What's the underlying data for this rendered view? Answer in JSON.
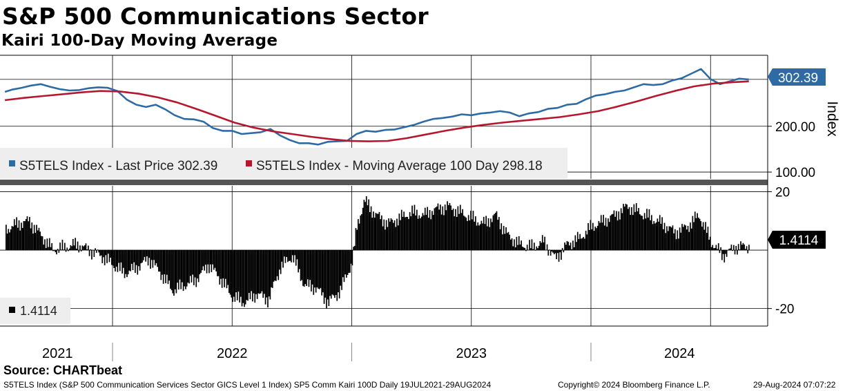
{
  "title": "S&P 500 Communications Sector",
  "subtitle": "Kairi 100-Day Moving Average",
  "source": "Source: CHARTbeat",
  "footer": {
    "description": "S5TELS Index (S&P 500 Communication Services Sector GICS Level 1 Index) SP5 Comm Kairi 100D  Daily 19JUL2021-29AUG2024",
    "copyright": "Copyright© 2024 Bloomberg Finance L.P.",
    "timestamp": "29-Aug-2024 07:07:22"
  },
  "colors": {
    "price": "#2e6ba4",
    "moving_average": "#b4172e",
    "kairi": "#000000",
    "label_bg": "#2e6ba4"
  },
  "chart_data": [
    {
      "type": "line",
      "title": "S5TELS Index",
      "ylabel": "Index",
      "ylim": [
        85,
        355
      ],
      "yticks": [
        100,
        200
      ],
      "ytick_labels": [
        "100.00",
        "200.00"
      ],
      "last_value_label": "302.39",
      "x_ticks": [
        "2021",
        "2022",
        "2023",
        "2024"
      ],
      "x_unit": "years (decimal)",
      "legend": [
        {
          "name": "S5TELS Index - Last Price 302.39",
          "color": "#2e6ba4"
        },
        {
          "name": "S5TELS Index - Moving Average 100 Day 298.18",
          "color": "#b4172e"
        }
      ],
      "series": [
        {
          "name": "Last Price",
          "x": [
            2021.55,
            2021.58,
            2021.62,
            2021.66,
            2021.7,
            2021.74,
            2021.78,
            2021.82,
            2021.86,
            2021.9,
            2021.94,
            2021.98,
            2022.02,
            2022.06,
            2022.1,
            2022.14,
            2022.18,
            2022.22,
            2022.26,
            2022.3,
            2022.34,
            2022.38,
            2022.42,
            2022.46,
            2022.5,
            2022.54,
            2022.58,
            2022.62,
            2022.66,
            2022.7,
            2022.74,
            2022.78,
            2022.82,
            2022.86,
            2022.9,
            2022.94,
            2022.98,
            2023.02,
            2023.06,
            2023.1,
            2023.14,
            2023.18,
            2023.22,
            2023.26,
            2023.3,
            2023.34,
            2023.38,
            2023.42,
            2023.46,
            2023.5,
            2023.54,
            2023.58,
            2023.62,
            2023.66,
            2023.7,
            2023.74,
            2023.78,
            2023.82,
            2023.86,
            2023.9,
            2023.94,
            2023.98,
            2024.02,
            2024.06,
            2024.1,
            2024.14,
            2024.18,
            2024.22,
            2024.26,
            2024.3,
            2024.34,
            2024.38,
            2024.42,
            2024.46,
            2024.5,
            2024.54,
            2024.58,
            2024.62,
            2024.66
          ],
          "values": [
            275,
            280,
            284,
            289,
            292,
            286,
            281,
            278,
            279,
            283,
            285,
            284,
            277,
            258,
            247,
            242,
            247,
            237,
            224,
            216,
            215,
            210,
            196,
            190,
            190,
            183,
            185,
            187,
            194,
            180,
            170,
            163,
            163,
            160,
            166,
            167,
            168,
            183,
            190,
            188,
            192,
            193,
            198,
            203,
            210,
            216,
            218,
            221,
            226,
            224,
            228,
            230,
            233,
            230,
            222,
            228,
            231,
            238,
            240,
            247,
            249,
            259,
            267,
            270,
            275,
            278,
            285,
            292,
            290,
            292,
            300,
            305,
            315,
            325,
            303,
            292,
            298,
            304,
            302
          ]
        },
        {
          "name": "Moving Average 100 Day",
          "x": [
            2021.55,
            2021.63,
            2021.71,
            2021.79,
            2021.87,
            2021.95,
            2022.03,
            2022.11,
            2022.19,
            2022.27,
            2022.35,
            2022.43,
            2022.51,
            2022.59,
            2022.67,
            2022.75,
            2022.83,
            2022.91,
            2022.99,
            2023.07,
            2023.15,
            2023.23,
            2023.31,
            2023.39,
            2023.47,
            2023.55,
            2023.63,
            2023.71,
            2023.79,
            2023.87,
            2023.95,
            2024.03,
            2024.11,
            2024.19,
            2024.27,
            2024.35,
            2024.43,
            2024.51,
            2024.59,
            2024.66
          ],
          "values": [
            257,
            262,
            266,
            270,
            274,
            277,
            276,
            271,
            263,
            252,
            238,
            223,
            208,
            197,
            189,
            183,
            177,
            172,
            168,
            167,
            168,
            174,
            182,
            190,
            197,
            203,
            208,
            212,
            216,
            220,
            226,
            233,
            243,
            254,
            266,
            277,
            287,
            293,
            296,
            298
          ]
        }
      ]
    },
    {
      "type": "bar",
      "title": "Kairi 100-Day",
      "ylim": [
        -26,
        22
      ],
      "yticks": [
        20,
        -20
      ],
      "ytick_labels": [
        "20",
        "-20"
      ],
      "last_value_label": "1.4114",
      "legend": [
        {
          "name": "1.4114",
          "color": "#000000"
        }
      ],
      "x": [
        2021.55,
        2021.6,
        2021.65,
        2021.7,
        2021.75,
        2021.8,
        2021.85,
        2021.9,
        2021.95,
        2022.0,
        2022.05,
        2022.1,
        2022.15,
        2022.2,
        2022.25,
        2022.3,
        2022.35,
        2022.4,
        2022.45,
        2022.5,
        2022.55,
        2022.6,
        2022.65,
        2022.7,
        2022.75,
        2022.8,
        2022.85,
        2022.9,
        2022.95,
        2023.0,
        2023.02,
        2023.05,
        2023.1,
        2023.15,
        2023.2,
        2023.25,
        2023.3,
        2023.35,
        2023.4,
        2023.45,
        2023.5,
        2023.55,
        2023.6,
        2023.65,
        2023.7,
        2023.75,
        2023.8,
        2023.85,
        2023.9,
        2023.95,
        2024.0,
        2024.05,
        2024.1,
        2024.15,
        2024.2,
        2024.25,
        2024.3,
        2024.35,
        2024.4,
        2024.45,
        2024.5,
        2024.55,
        2024.6,
        2024.66
      ],
      "values": [
        7,
        9,
        10,
        5,
        0,
        1,
        2,
        0,
        -2,
        -5,
        -8,
        -6,
        -3,
        -8,
        -14,
        -12,
        -10,
        -5,
        -10,
        -16,
        -18,
        -15,
        -17,
        -6,
        -2,
        -12,
        -13,
        -18,
        -14,
        -4,
        8,
        17,
        12,
        9,
        11,
        13,
        12,
        14,
        15,
        13,
        11,
        9,
        12,
        5,
        2,
        1,
        3,
        -3,
        2,
        4,
        8,
        10,
        12,
        15,
        13,
        11,
        9,
        6,
        8,
        12,
        3,
        -2,
        1,
        1.4
      ]
    }
  ]
}
